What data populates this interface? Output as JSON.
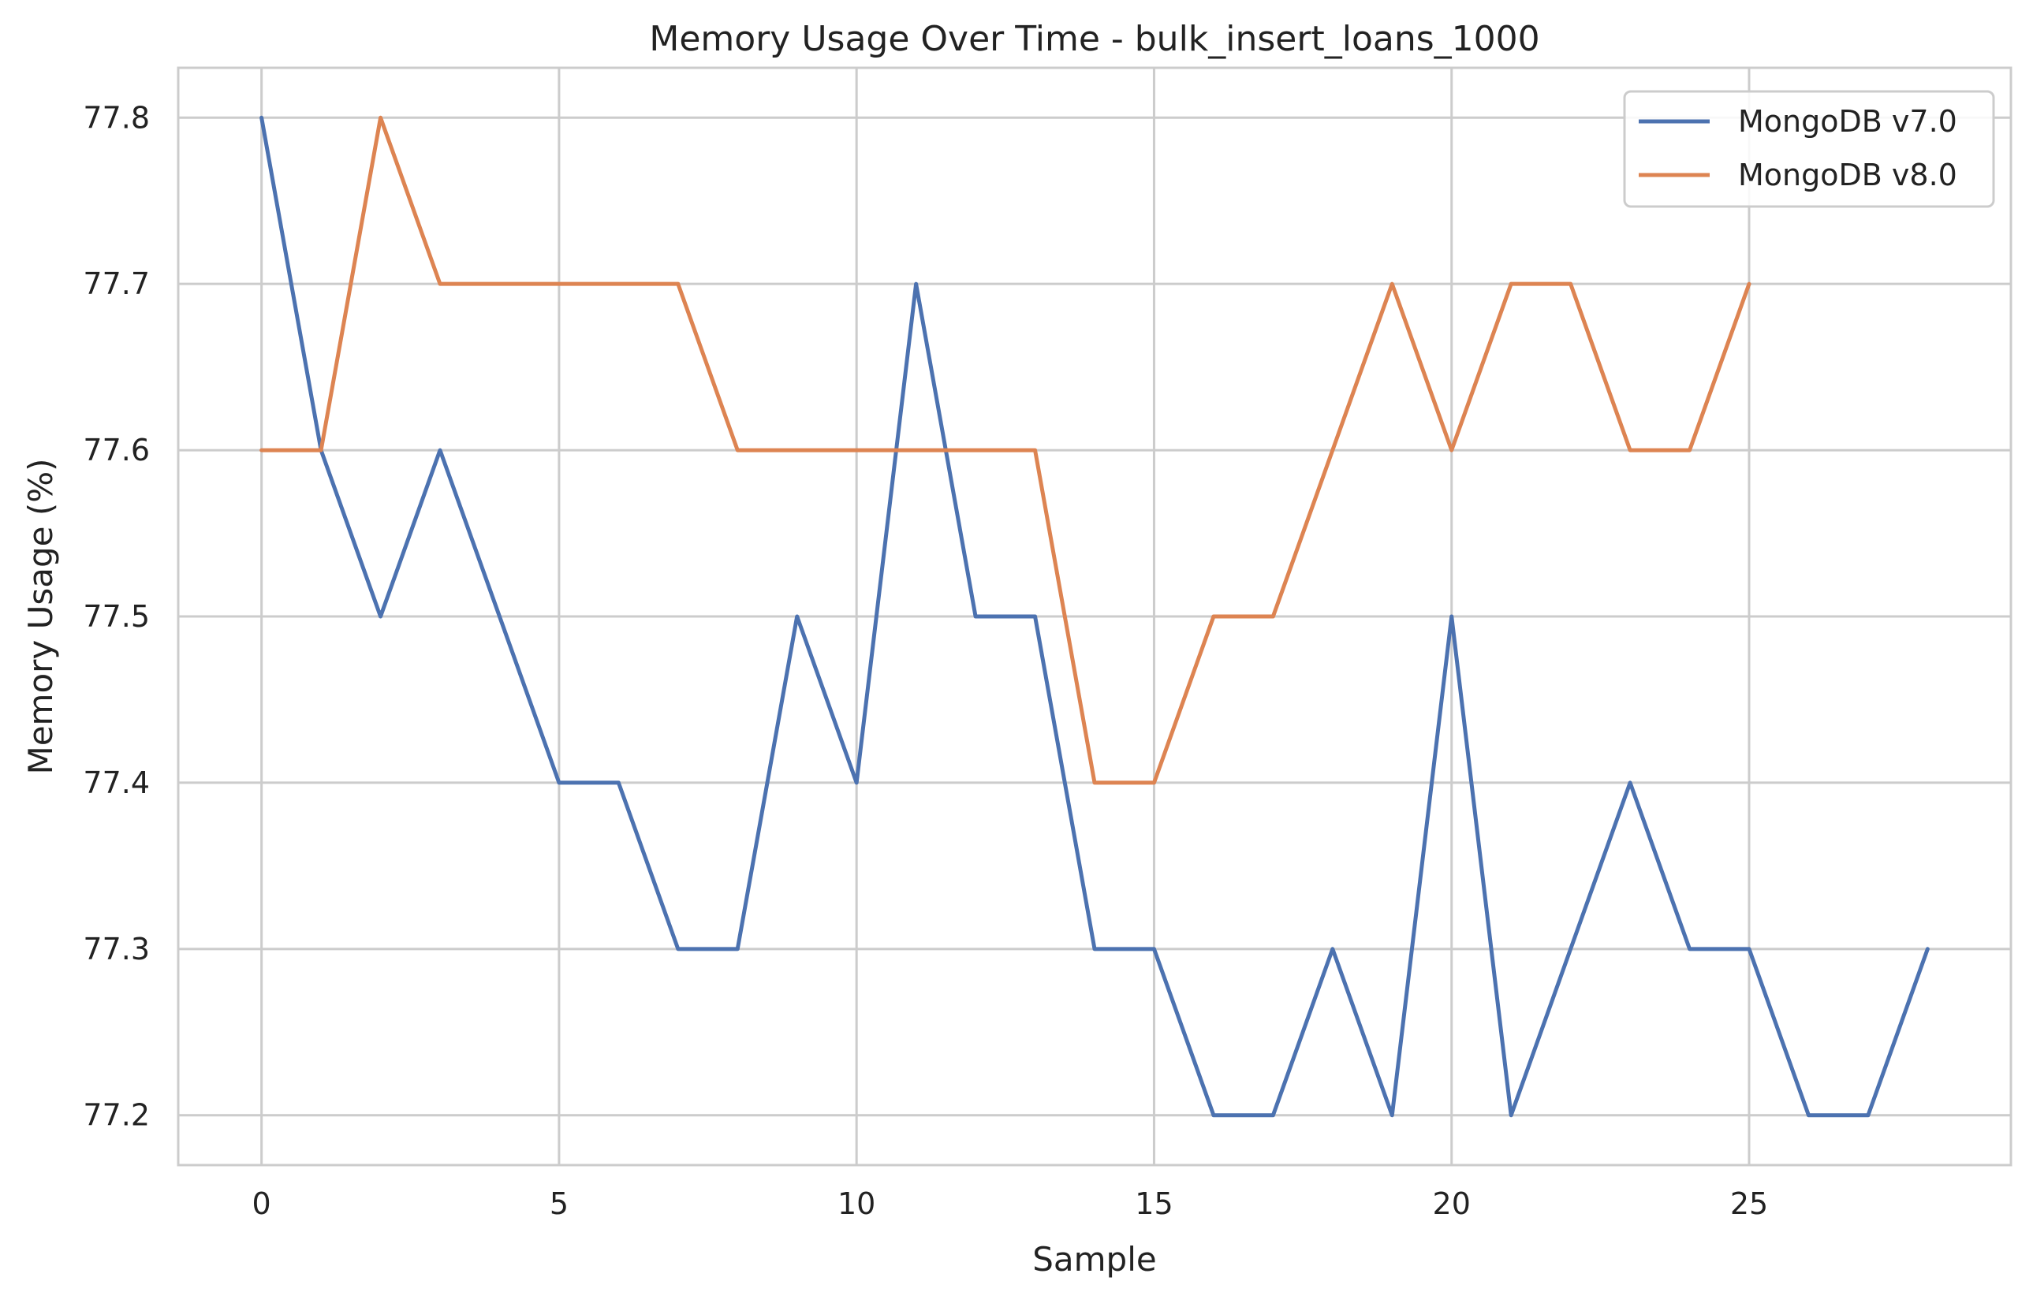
{
  "chart_data": {
    "type": "line",
    "title": "Memory Usage Over Time - bulk_insert_loans_1000",
    "xlabel": "Sample",
    "ylabel": "Memory Usage (%)",
    "xlim": [
      -1.4,
      29.4
    ],
    "ylim": [
      77.17,
      77.83
    ],
    "xticks": [
      0,
      5,
      10,
      15,
      20,
      25
    ],
    "yticks": [
      77.2,
      77.3,
      77.4,
      77.5,
      77.6,
      77.7,
      77.8
    ],
    "grid": true,
    "legend_position": "top-right",
    "series": [
      {
        "name": "MongoDB v7.0",
        "color": "#4c72b0",
        "x": [
          0,
          1,
          2,
          3,
          4,
          5,
          6,
          7,
          8,
          9,
          10,
          11,
          12,
          13,
          14,
          15,
          16,
          17,
          18,
          19,
          20,
          21,
          22,
          23,
          24,
          25,
          26,
          27,
          28
        ],
        "values": [
          77.8,
          77.6,
          77.5,
          77.6,
          77.5,
          77.4,
          77.4,
          77.3,
          77.3,
          77.5,
          77.4,
          77.7,
          77.5,
          77.5,
          77.3,
          77.3,
          77.2,
          77.2,
          77.3,
          77.2,
          77.5,
          77.2,
          77.3,
          77.4,
          77.3,
          77.3,
          77.2,
          77.2,
          77.3
        ]
      },
      {
        "name": "MongoDB v8.0",
        "color": "#dd8452",
        "x": [
          0,
          1,
          2,
          3,
          4,
          5,
          6,
          7,
          8,
          9,
          10,
          11,
          12,
          13,
          14,
          15,
          16,
          17,
          18,
          19,
          20,
          21,
          22,
          23,
          24,
          25
        ],
        "values": [
          77.6,
          77.6,
          77.8,
          77.7,
          77.7,
          77.7,
          77.7,
          77.7,
          77.6,
          77.6,
          77.6,
          77.6,
          77.6,
          77.6,
          77.4,
          77.4,
          77.5,
          77.5,
          77.6,
          77.7,
          77.6,
          77.7,
          77.7,
          77.6,
          77.6,
          77.7
        ]
      }
    ]
  }
}
